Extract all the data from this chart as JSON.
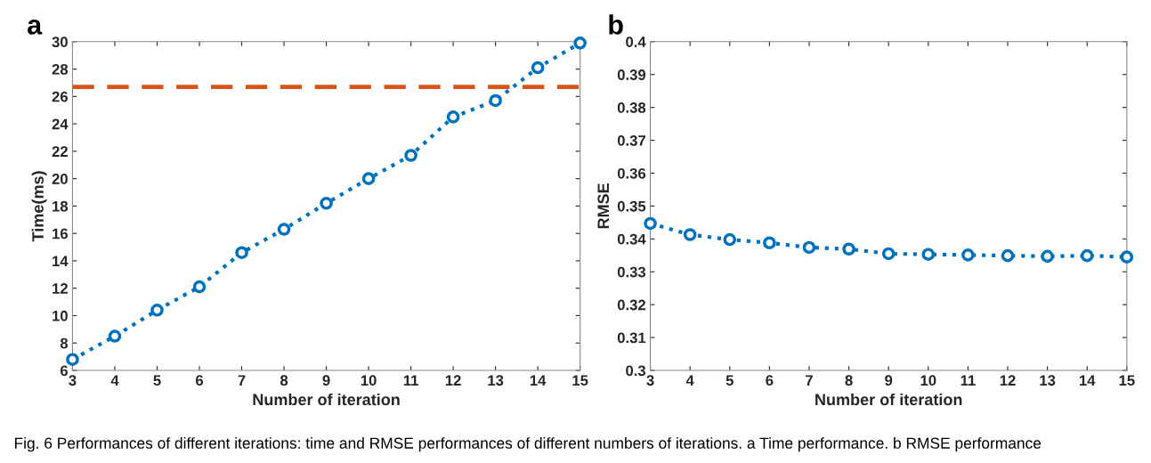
{
  "chart_data": [
    {
      "type": "line",
      "title": "a",
      "xlabel": "Number of iteration",
      "ylabel": "Time(ms)",
      "x": [
        3,
        4,
        5,
        6,
        7,
        8,
        9,
        10,
        11,
        12,
        13,
        14,
        15
      ],
      "series": [
        {
          "color": "#0072bd",
          "values": [
            6.8,
            8.5,
            10.4,
            12.1,
            14.6,
            16.3,
            18.2,
            20.0,
            21.7,
            24.5,
            25.7,
            28.1,
            29.9
          ]
        }
      ],
      "ref_lines": [
        {
          "axis": "y",
          "value": 26.7,
          "color": "#d95319",
          "line_style": "dashed"
        }
      ],
      "xlim": [
        3,
        15
      ],
      "xticks": [
        3,
        4,
        5,
        6,
        7,
        8,
        9,
        10,
        11,
        12,
        13,
        14,
        15
      ],
      "ylim": [
        6,
        30
      ],
      "yticks": [
        6,
        8,
        10,
        12,
        14,
        16,
        18,
        20,
        22,
        24,
        26,
        28,
        30
      ],
      "marker": "circle",
      "line_style": "dotted",
      "grid": false,
      "legend": false
    },
    {
      "type": "line",
      "title": "b",
      "xlabel": "Number of iteration",
      "ylabel": "RMSE",
      "x": [
        3,
        4,
        5,
        6,
        7,
        8,
        9,
        10,
        11,
        12,
        13,
        14,
        15
      ],
      "series": [
        {
          "color": "#0072bd",
          "values": [
            0.3447,
            0.3413,
            0.3398,
            0.3388,
            0.3374,
            0.3369,
            0.3355,
            0.3353,
            0.3351,
            0.3349,
            0.3347,
            0.3349,
            0.3345
          ]
        }
      ],
      "xlim": [
        3,
        15
      ],
      "xticks": [
        3,
        4,
        5,
        6,
        7,
        8,
        9,
        10,
        11,
        12,
        13,
        14,
        15
      ],
      "ylim": [
        0.3,
        0.4
      ],
      "yticks": [
        0.3,
        0.31,
        0.32,
        0.33,
        0.34,
        0.35,
        0.36,
        0.37,
        0.38,
        0.39,
        0.4
      ],
      "marker": "circle",
      "line_style": "dotted",
      "grid": false,
      "legend": false,
      "annotations": [
        "Fig. 6 Performances of different iterations: time and RMSE performances of different numbers of iterations. a Time performance. b RMSE performance"
      ]
    }
  ]
}
